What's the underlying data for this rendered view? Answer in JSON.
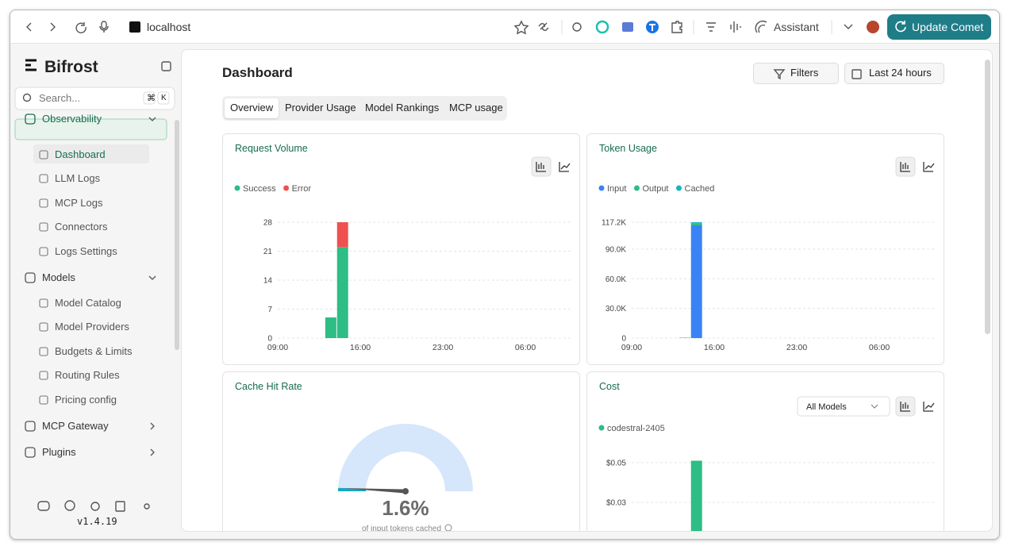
{
  "browser": {
    "url": "localhost",
    "assistant": "Assistant",
    "update_button": "Update Comet"
  },
  "sidebar": {
    "brand": "Bifrost",
    "search_placeholder": "Search...",
    "shortcut": [
      "⌘",
      "K"
    ],
    "nav": [
      {
        "label": "Observability",
        "items": [
          "Dashboard",
          "LLM Logs",
          "MCP Logs",
          "Connectors",
          "Logs Settings"
        ]
      },
      {
        "label": "Models",
        "items": [
          "Model Catalog",
          "Model Providers",
          "Budgets & Limits",
          "Routing Rules",
          "Pricing config"
        ]
      },
      {
        "label": "MCP Gateway"
      },
      {
        "label": "Plugins"
      }
    ],
    "version": "v1.4.19"
  },
  "header": {
    "title": "Dashboard",
    "filters": "Filters",
    "range": "Last 24 hours"
  },
  "tabs": [
    "Overview",
    "Provider Usage",
    "Model Rankings",
    "MCP usage"
  ],
  "chart_data": [
    {
      "type": "bar",
      "stacked": true,
      "title": "Request Volume",
      "categories": [
        "09:00",
        null,
        null,
        null,
        null,
        null,
        null,
        "16:00",
        null,
        null,
        null,
        null,
        null,
        null,
        "23:00",
        null,
        null,
        null,
        null,
        null,
        null,
        "06:00",
        null,
        null
      ],
      "series": [
        {
          "name": "Success",
          "color": "#2dbd85",
          "values": [
            0,
            0,
            0,
            0,
            5,
            22,
            0,
            0,
            0,
            0,
            0,
            0,
            0,
            0,
            0,
            0,
            0,
            0,
            0,
            0,
            0,
            0,
            0,
            0
          ]
        },
        {
          "name": "Error",
          "color": "#ef5151",
          "values": [
            0,
            0,
            0,
            0,
            0,
            6,
            0,
            0,
            0,
            0,
            0,
            0,
            0,
            0,
            0,
            0,
            0,
            0,
            0,
            0,
            0,
            0,
            0,
            0
          ]
        }
      ],
      "ylim": [
        0,
        28
      ],
      "yticks": [
        0,
        7,
        14,
        21,
        28
      ],
      "grid": true
    },
    {
      "type": "bar",
      "stacked": true,
      "title": "Token Usage",
      "categories": [
        "09:00",
        null,
        null,
        null,
        null,
        null,
        null,
        "16:00",
        null,
        null,
        null,
        null,
        null,
        null,
        "23:00",
        null,
        null,
        null,
        null,
        null,
        null,
        "06:00",
        null,
        null
      ],
      "series": [
        {
          "name": "Input",
          "color": "#3b82f6",
          "values": [
            0,
            0,
            0,
            0,
            0,
            114000,
            0,
            0,
            0,
            0,
            0,
            0,
            0,
            0,
            0,
            0,
            0,
            0,
            0,
            0,
            0,
            0,
            0,
            0
          ]
        },
        {
          "name": "Output",
          "color": "#2dbd85",
          "values": [
            0,
            0,
            0,
            0,
            400,
            1800,
            0,
            0,
            0,
            0,
            0,
            0,
            0,
            0,
            0,
            0,
            0,
            0,
            0,
            0,
            0,
            0,
            0,
            0
          ]
        },
        {
          "name": "Cached",
          "color": "#16b4c6",
          "values": [
            0,
            0,
            0,
            0,
            0,
            1400,
            0,
            0,
            0,
            0,
            0,
            0,
            0,
            0,
            0,
            0,
            0,
            0,
            0,
            0,
            0,
            0,
            0,
            0
          ]
        }
      ],
      "ylim": [
        0,
        117200
      ],
      "yticks": [
        0,
        {
          "value": 30000,
          "label": "30.0K"
        },
        {
          "value": 60000,
          "label": "60.0K"
        },
        {
          "value": 90000,
          "label": "90.0K"
        },
        {
          "value": 117200,
          "label": "117.2K"
        }
      ],
      "grid": true
    },
    {
      "type": "gauge",
      "title": "Cache Hit Rate",
      "value": 1.6,
      "value_label": "1.6%",
      "caption": "of input tokens cached",
      "ylim": [
        0,
        100
      ],
      "color": "#14a9c4",
      "track_color": "#d6e6fb"
    },
    {
      "type": "bar",
      "stacked": true,
      "title": "Cost",
      "dropdown": "All Models",
      "categories": [
        null,
        null,
        null,
        null,
        null,
        null,
        null,
        null,
        null,
        null,
        null,
        null,
        null,
        null,
        null,
        null,
        null,
        null,
        null,
        null,
        null,
        null,
        null,
        null
      ],
      "series": [
        {
          "name": "codestral-2405",
          "color": "#2dbd85",
          "values": [
            0,
            0,
            0,
            0,
            0,
            0.051,
            0,
            0,
            0,
            0,
            0,
            0,
            0,
            0,
            0,
            0,
            0,
            0,
            0,
            0,
            0,
            0,
            0,
            0
          ]
        }
      ],
      "ylim": [
        0,
        0.055
      ],
      "yticks": [
        {
          "value": 0.03,
          "label": "$0.03"
        },
        {
          "value": 0.05,
          "label": "$0.05"
        }
      ],
      "grid": true
    }
  ]
}
